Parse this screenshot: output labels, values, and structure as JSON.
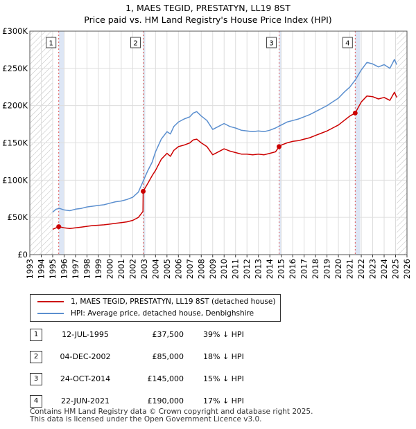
{
  "title_line1": "1, MAES TEGID, PRESTATYN, LL19 8ST",
  "title_line2": "Price paid vs. HM Land Registry's House Price Index (HPI)",
  "legend": [
    {
      "label": "1, MAES TEGID, PRESTATYN, LL19 8ST (detached house)",
      "color": "#cc0000"
    },
    {
      "label": "HPI: Average price, detached house, Denbighshire",
      "color": "#5b8fcf"
    }
  ],
  "sales": [
    {
      "num": "1",
      "date": "12-JUL-1995",
      "price": "£37,500",
      "hpi": "39% ↓ HPI"
    },
    {
      "num": "2",
      "date": "04-DEC-2002",
      "price": "£85,000",
      "hpi": "18% ↓ HPI"
    },
    {
      "num": "3",
      "date": "24-OCT-2014",
      "price": "£145,000",
      "hpi": "15% ↓ HPI"
    },
    {
      "num": "4",
      "date": "22-JUN-2021",
      "price": "£190,000",
      "hpi": "17% ↓ HPI"
    }
  ],
  "footer_line1": "Contains HM Land Registry data © Crown copyright and database right 2025.",
  "footer_line2": "This data is licensed under the Open Government Licence v3.0.",
  "chart_data": {
    "type": "line",
    "title": "1, MAES TEGID, PRESTATYN, LL19 8ST",
    "subtitle": "Price paid vs. HM Land Registry's House Price Index (HPI)",
    "xlabel": "",
    "ylabel": "",
    "xlim": [
      1993,
      2026
    ],
    "ylim": [
      0,
      300000
    ],
    "yticks": [
      {
        "v": 0,
        "label": "£0"
      },
      {
        "v": 50000,
        "label": "£50K"
      },
      {
        "v": 100000,
        "label": "£100K"
      },
      {
        "v": 150000,
        "label": "£150K"
      },
      {
        "v": 200000,
        "label": "£200K"
      },
      {
        "v": 250000,
        "label": "£250K"
      },
      {
        "v": 300000,
        "label": "£300K"
      }
    ],
    "xticks": [
      "1993",
      "1994",
      "1995",
      "1996",
      "1997",
      "1998",
      "1999",
      "2000",
      "2001",
      "2002",
      "2003",
      "2004",
      "2005",
      "2006",
      "2007",
      "2008",
      "2009",
      "2010",
      "2011",
      "2012",
      "2013",
      "2014",
      "2015",
      "2016",
      "2017",
      "2018",
      "2019",
      "2020",
      "2021",
      "2022",
      "2023",
      "2024",
      "2025",
      "2026"
    ],
    "hatch_ranges": [
      [
        1993,
        1995.0
      ],
      [
        2025.1,
        2026
      ]
    ],
    "highlight_ranges": [
      [
        1995.53,
        1996.0
      ],
      [
        2002.92,
        2003.1
      ],
      [
        2014.81,
        2015.0
      ],
      [
        2021.47,
        2021.9
      ]
    ],
    "sale_markers": [
      {
        "label": "1",
        "x": 1995.53,
        "y": 37500
      },
      {
        "label": "2",
        "x": 2002.92,
        "y": 85000
      },
      {
        "label": "3",
        "x": 2014.81,
        "y": 145000
      },
      {
        "label": "4",
        "x": 2021.47,
        "y": 190000
      }
    ],
    "series": [
      {
        "name": "HPI: Average price, detached house, Denbighshire",
        "color": "#5b8fcf",
        "points": [
          [
            1995.0,
            57000
          ],
          [
            1995.3,
            61000
          ],
          [
            1995.6,
            62000
          ],
          [
            1996.0,
            60000
          ],
          [
            1996.5,
            59000
          ],
          [
            1997.0,
            61000
          ],
          [
            1997.5,
            62000
          ],
          [
            1998.0,
            64000
          ],
          [
            1998.5,
            65000
          ],
          [
            1999.0,
            66000
          ],
          [
            1999.5,
            67000
          ],
          [
            2000.0,
            69000
          ],
          [
            2000.5,
            71000
          ],
          [
            2001.0,
            72000
          ],
          [
            2001.5,
            74000
          ],
          [
            2002.0,
            77000
          ],
          [
            2002.5,
            84000
          ],
          [
            2002.9,
            98000
          ],
          [
            2003.3,
            112000
          ],
          [
            2003.7,
            124000
          ],
          [
            2004.0,
            138000
          ],
          [
            2004.5,
            155000
          ],
          [
            2005.0,
            165000
          ],
          [
            2005.3,
            162000
          ],
          [
            2005.6,
            172000
          ],
          [
            2006.0,
            178000
          ],
          [
            2006.5,
            182000
          ],
          [
            2007.0,
            185000
          ],
          [
            2007.3,
            190000
          ],
          [
            2007.6,
            192000
          ],
          [
            2008.0,
            186000
          ],
          [
            2008.5,
            180000
          ],
          [
            2009.0,
            168000
          ],
          [
            2009.5,
            172000
          ],
          [
            2010.0,
            176000
          ],
          [
            2010.5,
            172000
          ],
          [
            2011.0,
            170000
          ],
          [
            2011.5,
            167000
          ],
          [
            2012.0,
            166000
          ],
          [
            2012.5,
            165000
          ],
          [
            2013.0,
            166000
          ],
          [
            2013.5,
            165000
          ],
          [
            2014.0,
            167000
          ],
          [
            2014.5,
            170000
          ],
          [
            2015.0,
            174000
          ],
          [
            2015.5,
            178000
          ],
          [
            2016.0,
            180000
          ],
          [
            2016.5,
            182000
          ],
          [
            2017.0,
            185000
          ],
          [
            2017.5,
            188000
          ],
          [
            2018.0,
            192000
          ],
          [
            2018.5,
            196000
          ],
          [
            2019.0,
            200000
          ],
          [
            2019.5,
            205000
          ],
          [
            2020.0,
            210000
          ],
          [
            2020.5,
            218000
          ],
          [
            2021.0,
            225000
          ],
          [
            2021.5,
            235000
          ],
          [
            2022.0,
            248000
          ],
          [
            2022.5,
            258000
          ],
          [
            2023.0,
            256000
          ],
          [
            2023.5,
            252000
          ],
          [
            2024.0,
            255000
          ],
          [
            2024.5,
            250000
          ],
          [
            2024.9,
            262000
          ],
          [
            2025.1,
            255000
          ]
        ]
      },
      {
        "name": "1, MAES TEGID, PRESTATYN, LL19 8ST (detached house)",
        "color": "#cc0000",
        "points": [
          [
            1995.0,
            34000
          ],
          [
            1995.53,
            37500
          ],
          [
            1996.0,
            36000
          ],
          [
            1996.5,
            35000
          ],
          [
            1997.0,
            36000
          ],
          [
            1997.5,
            37000
          ],
          [
            1998.0,
            38000
          ],
          [
            1998.5,
            39000
          ],
          [
            1999.0,
            39500
          ],
          [
            1999.5,
            40000
          ],
          [
            2000.0,
            41000
          ],
          [
            2000.5,
            42000
          ],
          [
            2001.0,
            43000
          ],
          [
            2001.5,
            44000
          ],
          [
            2002.0,
            46000
          ],
          [
            2002.5,
            50000
          ],
          [
            2002.9,
            58000
          ],
          [
            2002.92,
            85000
          ],
          [
            2003.3,
            95000
          ],
          [
            2003.7,
            106000
          ],
          [
            2004.0,
            113000
          ],
          [
            2004.5,
            128000
          ],
          [
            2005.0,
            136000
          ],
          [
            2005.3,
            132000
          ],
          [
            2005.6,
            140000
          ],
          [
            2006.0,
            145000
          ],
          [
            2006.5,
            147000
          ],
          [
            2007.0,
            150000
          ],
          [
            2007.3,
            154000
          ],
          [
            2007.6,
            155000
          ],
          [
            2008.0,
            150000
          ],
          [
            2008.5,
            145000
          ],
          [
            2009.0,
            134000
          ],
          [
            2009.5,
            138000
          ],
          [
            2010.0,
            142000
          ],
          [
            2010.5,
            139000
          ],
          [
            2011.0,
            137000
          ],
          [
            2011.5,
            135000
          ],
          [
            2012.0,
            135000
          ],
          [
            2012.5,
            134000
          ],
          [
            2013.0,
            135000
          ],
          [
            2013.5,
            134000
          ],
          [
            2014.0,
            136000
          ],
          [
            2014.5,
            138000
          ],
          [
            2014.81,
            145000
          ],
          [
            2015.0,
            147000
          ],
          [
            2015.5,
            150000
          ],
          [
            2016.0,
            152000
          ],
          [
            2016.5,
            153000
          ],
          [
            2017.0,
            155000
          ],
          [
            2017.5,
            157000
          ],
          [
            2018.0,
            160000
          ],
          [
            2018.5,
            163000
          ],
          [
            2019.0,
            166000
          ],
          [
            2019.5,
            170000
          ],
          [
            2020.0,
            174000
          ],
          [
            2020.5,
            180000
          ],
          [
            2021.0,
            186000
          ],
          [
            2021.47,
            190000
          ],
          [
            2022.0,
            205000
          ],
          [
            2022.5,
            213000
          ],
          [
            2023.0,
            212000
          ],
          [
            2023.5,
            209000
          ],
          [
            2024.0,
            211000
          ],
          [
            2024.5,
            207000
          ],
          [
            2024.9,
            218000
          ],
          [
            2025.1,
            211000
          ]
        ]
      }
    ]
  }
}
